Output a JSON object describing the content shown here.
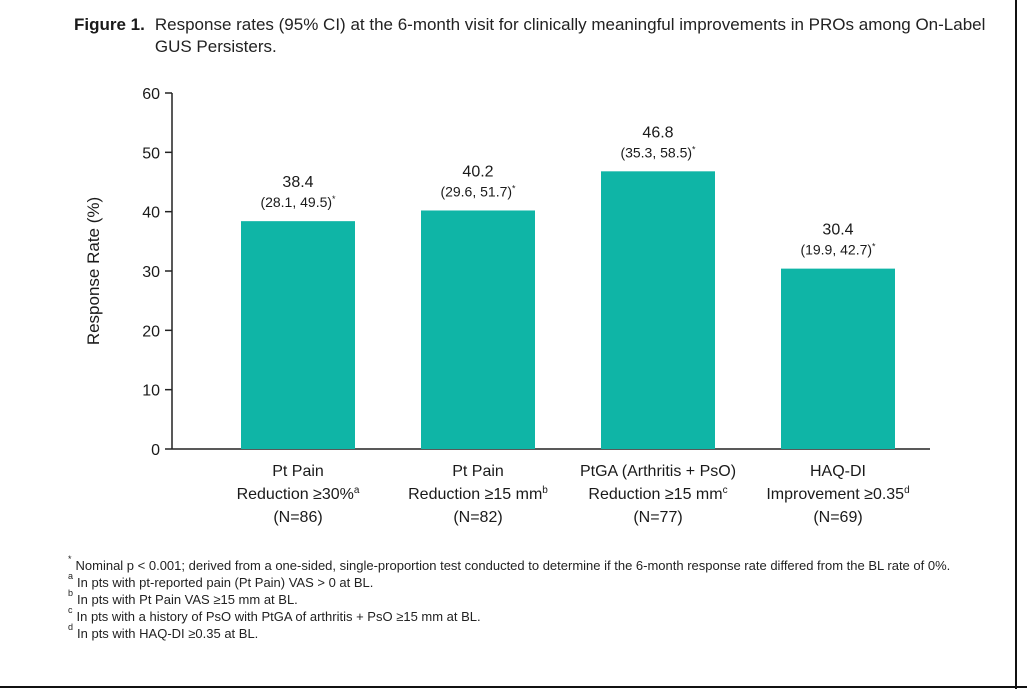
{
  "figure": {
    "label": "Figure 1.",
    "caption": "Response rates (95% CI) at the 6-month visit for clinically meaningful improvements in PROs among On-Label GUS Persisters."
  },
  "chart_data": {
    "type": "bar",
    "title": "Response rates (95% CI) at the 6-month visit for clinically meaningful improvements in PROs among On-Label GUS Persisters.",
    "ylabel": "Response Rate (%)",
    "xlabel": "",
    "ylim": [
      0,
      60
    ],
    "yticks": [
      0,
      10,
      20,
      30,
      40,
      50,
      60
    ],
    "grid": false,
    "bar_color": "#0fb5a6",
    "categories": [
      {
        "line1": "Pt Pain",
        "line2": "Reduction ≥30%",
        "sup": "a",
        "n": "(N=86)"
      },
      {
        "line1": "Pt Pain",
        "line2": "Reduction ≥15 mm",
        "sup": "b",
        "n": "(N=82)"
      },
      {
        "line1": "PtGA (Arthritis + PsO)",
        "line2": "Reduction ≥15 mm",
        "sup": "c",
        "n": "(N=77)"
      },
      {
        "line1": "HAQ-DI",
        "line2": "Improvement ≥0.35",
        "sup": "d",
        "n": "(N=69)"
      }
    ],
    "values": [
      38.4,
      40.2,
      46.8,
      30.4
    ],
    "value_labels": [
      "38.4",
      "40.2",
      "46.8",
      "30.4"
    ],
    "ci_labels": [
      "(28.1, 49.5)",
      "(29.6, 51.7)",
      "(35.3, 58.5)",
      "(19.9, 42.7)"
    ],
    "ci_mark": "*"
  },
  "footnotes": [
    {
      "mark": "*",
      "text": "Nominal p < 0.001; derived from a one-sided, single-proportion test conducted to determine if the 6-month response rate differed from the BL rate of 0%."
    },
    {
      "mark": "a",
      "text": "In pts with pt-reported pain (Pt Pain) VAS > 0 at BL."
    },
    {
      "mark": "b",
      "text": "In pts with Pt Pain VAS ≥15 mm at BL."
    },
    {
      "mark": "c",
      "text": "In pts with a history of PsO with PtGA of arthritis + PsO ≥15 mm at BL."
    },
    {
      "mark": "d",
      "text": "In pts with HAQ-DI ≥0.35 at BL."
    }
  ]
}
